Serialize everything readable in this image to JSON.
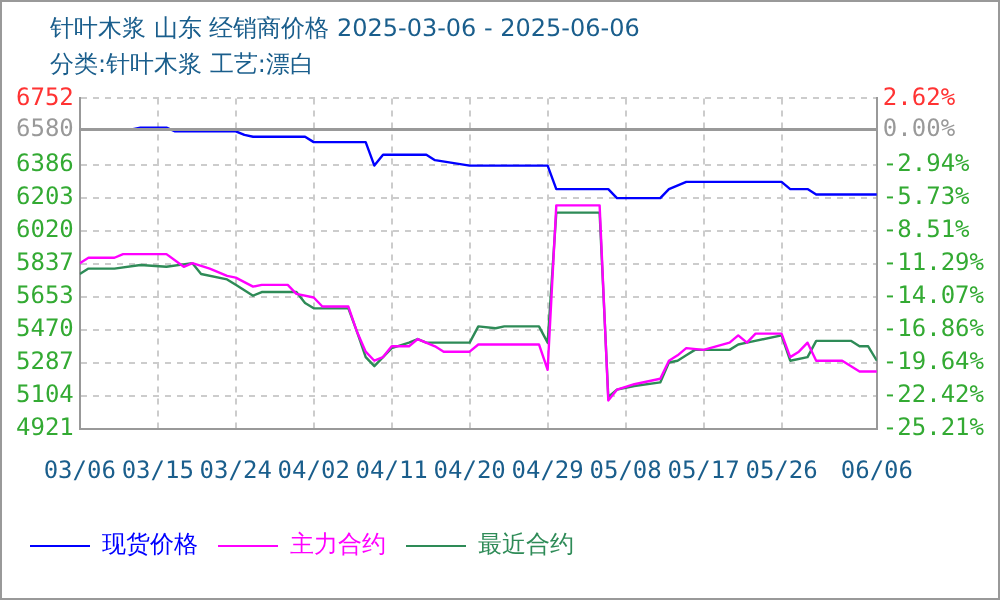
{
  "chart_data": {
    "type": "line",
    "title": "针叶木浆 山东 经销商价格 2025-03-06 - 2025-06-06",
    "subtitle": "分类:针叶木浆 工艺:漂白",
    "xlim": [
      "2025-03-06",
      "2025-06-06"
    ],
    "xticks": [
      {
        "value": "2025-03-06",
        "label": "03/06"
      },
      {
        "value": "2025-03-15",
        "label": "03/15"
      },
      {
        "value": "2025-03-24",
        "label": "03/24"
      },
      {
        "value": "2025-04-02",
        "label": "04/02"
      },
      {
        "value": "2025-04-11",
        "label": "04/11"
      },
      {
        "value": "2025-04-20",
        "label": "04/20"
      },
      {
        "value": "2025-04-29",
        "label": "04/29"
      },
      {
        "value": "2025-05-08",
        "label": "05/08"
      },
      {
        "value": "2025-05-17",
        "label": "05/17"
      },
      {
        "value": "2025-05-26",
        "label": "05/26"
      },
      {
        "value": "2025-06-06",
        "label": "06/06"
      }
    ],
    "ylim": [
      4921,
      6752
    ],
    "yticks": [
      4921,
      5104,
      5287,
      5470,
      5653,
      5837,
      6020,
      6203,
      6386,
      6580,
      6752
    ],
    "y2lim": [
      -25.21,
      2.62
    ],
    "y2ticks": [
      {
        "value": -25.21,
        "label": "-25.21%"
      },
      {
        "value": -22.42,
        "label": "-22.42%"
      },
      {
        "value": -19.64,
        "label": "-19.64%"
      },
      {
        "value": -16.86,
        "label": "-16.86%"
      },
      {
        "value": -14.07,
        "label": "-14.07%"
      },
      {
        "value": -11.29,
        "label": "-11.29%"
      },
      {
        "value": -8.51,
        "label": "-8.51%"
      },
      {
        "value": -5.73,
        "label": "-5.73%"
      },
      {
        "value": -2.94,
        "label": "-2.94%"
      },
      {
        "value": 0,
        "label": "0.00%"
      },
      {
        "value": 2.62,
        "label": "2.62%"
      }
    ],
    "ref_lines": [
      {
        "axis": "y2",
        "value": 0,
        "color": "#999999"
      }
    ],
    "grid": true,
    "legend": "bottom",
    "marker": "none",
    "line_style": "solid",
    "series": [
      {
        "name": "现货价格",
        "color": "#0000ff",
        "x": [
          "2025-03-06",
          "2025-03-12",
          "2025-03-13",
          "2025-03-16",
          "2025-03-17",
          "2025-03-24",
          "2025-03-25",
          "2025-03-26",
          "2025-04-01",
          "2025-04-02",
          "2025-04-08",
          "2025-04-09",
          "2025-04-10",
          "2025-04-15",
          "2025-04-16",
          "2025-04-20",
          "2025-04-29",
          "2025-04-30",
          "2025-05-06",
          "2025-05-07",
          "2025-05-12",
          "2025-05-13",
          "2025-05-15",
          "2025-05-26",
          "2025-05-27",
          "2025-05-29",
          "2025-05-30",
          "2025-06-06"
        ],
        "values": [
          6580,
          6580,
          6590,
          6590,
          6570,
          6570,
          6550,
          6540,
          6540,
          6510,
          6510,
          6380,
          6440,
          6440,
          6410,
          6380,
          6380,
          6250,
          6250,
          6200,
          6200,
          6250,
          6290,
          6290,
          6250,
          6250,
          6220,
          6220
        ]
      },
      {
        "name": "主力合约",
        "color": "#ff00ff",
        "x": [
          "2025-03-06",
          "2025-03-07",
          "2025-03-10",
          "2025-03-11",
          "2025-03-16",
          "2025-03-18",
          "2025-03-19",
          "2025-03-21",
          "2025-03-23",
          "2025-03-24",
          "2025-03-26",
          "2025-03-27",
          "2025-03-30",
          "2025-03-31",
          "2025-04-02",
          "2025-04-03",
          "2025-04-06",
          "2025-04-07",
          "2025-04-08",
          "2025-04-09",
          "2025-04-10",
          "2025-04-11",
          "2025-04-13",
          "2025-04-14",
          "2025-04-16",
          "2025-04-17",
          "2025-04-20",
          "2025-04-21",
          "2025-04-28",
          "2025-04-29",
          "2025-04-30",
          "2025-05-05",
          "2025-05-06",
          "2025-05-07",
          "2025-05-09",
          "2025-05-12",
          "2025-05-13",
          "2025-05-14",
          "2025-05-15",
          "2025-05-17",
          "2025-05-20",
          "2025-05-21",
          "2025-05-22",
          "2025-05-23",
          "2025-05-26",
          "2025-05-27",
          "2025-05-28",
          "2025-05-29",
          "2025-05-30",
          "2025-06-02",
          "2025-06-04",
          "2025-06-06"
        ],
        "values": [
          5840,
          5870,
          5870,
          5890,
          5890,
          5820,
          5840,
          5810,
          5770,
          5760,
          5710,
          5720,
          5720,
          5670,
          5650,
          5600,
          5600,
          5460,
          5350,
          5300,
          5320,
          5380,
          5380,
          5420,
          5380,
          5350,
          5350,
          5390,
          5390,
          5250,
          6160,
          6160,
          5080,
          5140,
          5170,
          5200,
          5300,
          5330,
          5370,
          5360,
          5400,
          5440,
          5400,
          5450,
          5450,
          5320,
          5350,
          5400,
          5300,
          5300,
          5240,
          5240
        ]
      },
      {
        "name": "最近合约",
        "color": "#2e8b57",
        "x": [
          "2025-03-06",
          "2025-03-07",
          "2025-03-10",
          "2025-03-13",
          "2025-03-16",
          "2025-03-19",
          "2025-03-20",
          "2025-03-23",
          "2025-03-24",
          "2025-03-26",
          "2025-03-27",
          "2025-03-31",
          "2025-04-01",
          "2025-04-02",
          "2025-04-06",
          "2025-04-07",
          "2025-04-08",
          "2025-04-09",
          "2025-04-11",
          "2025-04-13",
          "2025-04-14",
          "2025-04-15",
          "2025-04-20",
          "2025-04-21",
          "2025-04-23",
          "2025-04-24",
          "2025-04-28",
          "2025-04-29",
          "2025-04-30",
          "2025-05-05",
          "2025-05-06",
          "2025-05-07",
          "2025-05-09",
          "2025-05-12",
          "2025-05-13",
          "2025-05-14",
          "2025-05-15",
          "2025-05-16",
          "2025-05-20",
          "2025-05-21",
          "2025-05-22",
          "2025-05-26",
          "2025-05-27",
          "2025-05-29",
          "2025-05-30",
          "2025-06-03",
          "2025-06-04",
          "2025-06-05",
          "2025-06-06"
        ],
        "values": [
          5780,
          5810,
          5810,
          5830,
          5820,
          5840,
          5780,
          5750,
          5720,
          5660,
          5680,
          5680,
          5620,
          5590,
          5590,
          5460,
          5320,
          5270,
          5370,
          5400,
          5420,
          5400,
          5400,
          5490,
          5480,
          5490,
          5490,
          5400,
          6120,
          6120,
          5100,
          5140,
          5160,
          5180,
          5290,
          5300,
          5330,
          5360,
          5360,
          5390,
          5400,
          5440,
          5300,
          5320,
          5410,
          5410,
          5380,
          5380,
          5300
        ]
      }
    ]
  }
}
